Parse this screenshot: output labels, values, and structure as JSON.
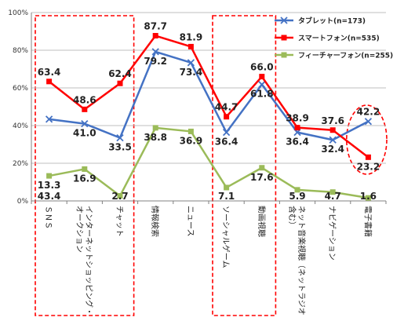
{
  "chart_data": {
    "type": "line",
    "categories": [
      "ＳＮＳ",
      "インターネットショッピング・オークション",
      "チャット",
      "情報検索",
      "ニュース",
      "ソーシャルゲーム",
      "動画視聴",
      "ネット音楽視聴（ネットラジオ含む）",
      "ナビゲーション",
      "電子書籍"
    ],
    "series": [
      {
        "name": "タブレット(n=173)",
        "color": "#4472C4",
        "marker": "x",
        "values": [
          43.4,
          41.0,
          33.5,
          79.2,
          73.4,
          36.4,
          61.8,
          36.4,
          32.4,
          42.2
        ]
      },
      {
        "name": "スマートフォン(n=535)",
        "color": "#FF0000",
        "marker": "square",
        "values": [
          63.4,
          48.6,
          62.4,
          87.7,
          81.9,
          44.7,
          66.0,
          38.9,
          37.6,
          23.2
        ]
      },
      {
        "name": "フィーチャーフォン(n=255)",
        "color": "#9BBB59",
        "marker": "square",
        "values": [
          13.3,
          16.9,
          2.7,
          38.8,
          36.9,
          7.1,
          17.6,
          5.9,
          4.7,
          1.6
        ]
      }
    ],
    "y_ticks": [
      "0%",
      "20%",
      "40%",
      "60%",
      "80%",
      "100%"
    ],
    "ylim": [
      0,
      100
    ],
    "grid": true,
    "legend_position": "top-right",
    "highlight_boxes": [
      {
        "from": 0,
        "to": 2,
        "style": "dashed-rectangle",
        "color": "#FF0000"
      },
      {
        "from": 5,
        "to": 6,
        "style": "dashed-rectangle",
        "color": "#FF0000"
      },
      {
        "from": 9,
        "to": 9,
        "style": "dashed-ellipse",
        "color": "#FF0000"
      }
    ],
    "label_order": [
      [
        1,
        2,
        0
      ],
      [
        1,
        0,
        2
      ],
      [
        1,
        0,
        2
      ],
      [
        1,
        0,
        2
      ],
      [
        1,
        0,
        2
      ],
      [
        1,
        0,
        2
      ],
      [
        1,
        0,
        2
      ],
      [
        1,
        0,
        2
      ],
      [
        1,
        0,
        2
      ],
      [
        0,
        1,
        2
      ]
    ]
  }
}
